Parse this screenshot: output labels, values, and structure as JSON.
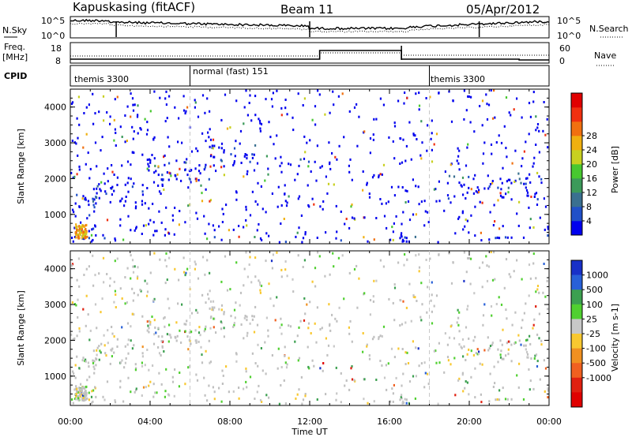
{
  "header": {
    "site": "Kapuskasing (fitACF)",
    "beam": "Beam 11",
    "date": "05/Apr/2012"
  },
  "sky_panel": {
    "left_label": "N.Sky",
    "right_label": "N.Search",
    "ticks": [
      "10^5",
      "10^0"
    ]
  },
  "freq_panel": {
    "left_label_1": "Freq.",
    "left_label_2": "[MHz]",
    "left_ticks": [
      "18",
      "8"
    ],
    "right_label": "Nave",
    "right_ticks": [
      "60",
      "0"
    ]
  },
  "cpid_panel": {
    "label": "CPID",
    "segments": [
      {
        "label": "themis 3300",
        "start_hour": 0
      },
      {
        "label": "normal (fast) 151",
        "start_hour": 6
      },
      {
        "label": "themis 3300",
        "start_hour": 18
      }
    ]
  },
  "chart_data": [
    {
      "type": "heatmap",
      "name": "power",
      "ylabel": "Slant Range [km]",
      "ylim": [
        180,
        4500
      ],
      "yticks": [
        1000,
        2000,
        3000,
        4000
      ],
      "xlim_hours": [
        0,
        24
      ],
      "colorbar_label": "Power [dB]",
      "colorbar_ticks": [
        "4",
        "8",
        "12",
        "16",
        "20",
        "24",
        "28"
      ],
      "colorbar_colors": [
        "#0000ee",
        "#2050c8",
        "#3a7090",
        "#3c9a5a",
        "#48c830",
        "#c8d020",
        "#f0b010",
        "#f07010",
        "#f03010",
        "#e00000"
      ],
      "features": [
        {
          "x0": 0.1,
          "x1": 1.2,
          "y0": 300,
          "y1": 1600,
          "density": 0.75
        },
        {
          "x0": 1.2,
          "x1": 4.0,
          "y0": 1250,
          "y1": 2100,
          "density": 0.45
        },
        {
          "x0": 4.0,
          "x1": 7.0,
          "y0": 1900,
          "y1": 2500,
          "density": 0.8
        },
        {
          "x0": 7.0,
          "x1": 9.3,
          "y0": 2300,
          "y1": 3000,
          "density": 0.65
        },
        {
          "x0": 11.3,
          "x1": 12.0,
          "y0": 2350,
          "y1": 2650,
          "density": 0.55
        },
        {
          "x0": 18.8,
          "x1": 24.0,
          "y0": 1450,
          "y1": 2150,
          "density": 0.45
        },
        {
          "x0": 21.5,
          "x1": 22.5,
          "y0": 1900,
          "y1": 2400,
          "density": 0.7
        },
        {
          "x0": 0.0,
          "x1": 24.0,
          "y0": 190,
          "y1": 450,
          "density": 0.25
        }
      ]
    },
    {
      "type": "heatmap",
      "name": "velocity",
      "ylabel": "Slant Range [km]",
      "ylim": [
        180,
        4500
      ],
      "yticks": [
        1000,
        2000,
        3000,
        4000
      ],
      "xlim_hours": [
        0,
        24
      ],
      "xticks": [
        "00:00",
        "04:00",
        "08:00",
        "12:00",
        "16:00",
        "20:00",
        "00:00"
      ],
      "xlabel": "Time UT",
      "colorbar_label": "Velocity [m s-1]",
      "colorbar_ticks": [
        "1000",
        "500",
        "100",
        "25",
        "-25",
        "-100",
        "-500",
        "-1000"
      ],
      "colorbar_colors": [
        "#1830c8",
        "#2860d8",
        "#3ca050",
        "#50d030",
        "#c8c8c8",
        "#f8c830",
        "#f09020",
        "#f06020",
        "#e02010",
        "#e00000"
      ]
    }
  ],
  "colors": {
    "ground_scatter": "#c0c0c0"
  }
}
